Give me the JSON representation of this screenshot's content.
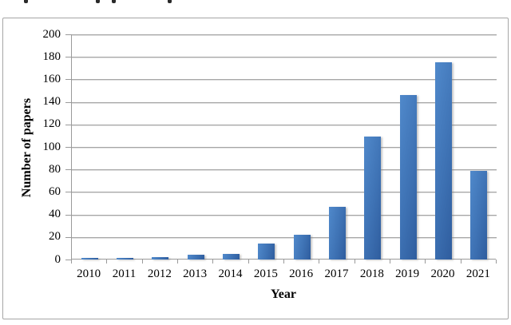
{
  "chart_data": {
    "type": "bar",
    "title": "",
    "categories": [
      "2010",
      "2011",
      "2012",
      "2013",
      "2014",
      "2015",
      "2016",
      "2017",
      "2018",
      "2019",
      "2020",
      "2021"
    ],
    "values": [
      1,
      1,
      2,
      4,
      5,
      14,
      22,
      47,
      109,
      146,
      175,
      79
    ],
    "xlabel": "Year",
    "ylabel": "Number of papers",
    "ylim": [
      0,
      200
    ],
    "ytick_step": 20,
    "grid": true,
    "legend": false
  },
  "colors": {
    "bar_gradient_light": "#5089cb",
    "bar_gradient_mid": "#3e72b4",
    "bar_gradient_dark": "#2f5d9e",
    "gridline": "#a6a6a6",
    "axis": "#9a9a9a",
    "frame": "#a6a6a6",
    "text": "#000000",
    "background": "#ffffff"
  },
  "decor": {
    "cropped_top_text_fragments_x": [
      30,
      120,
      140,
      210
    ]
  }
}
